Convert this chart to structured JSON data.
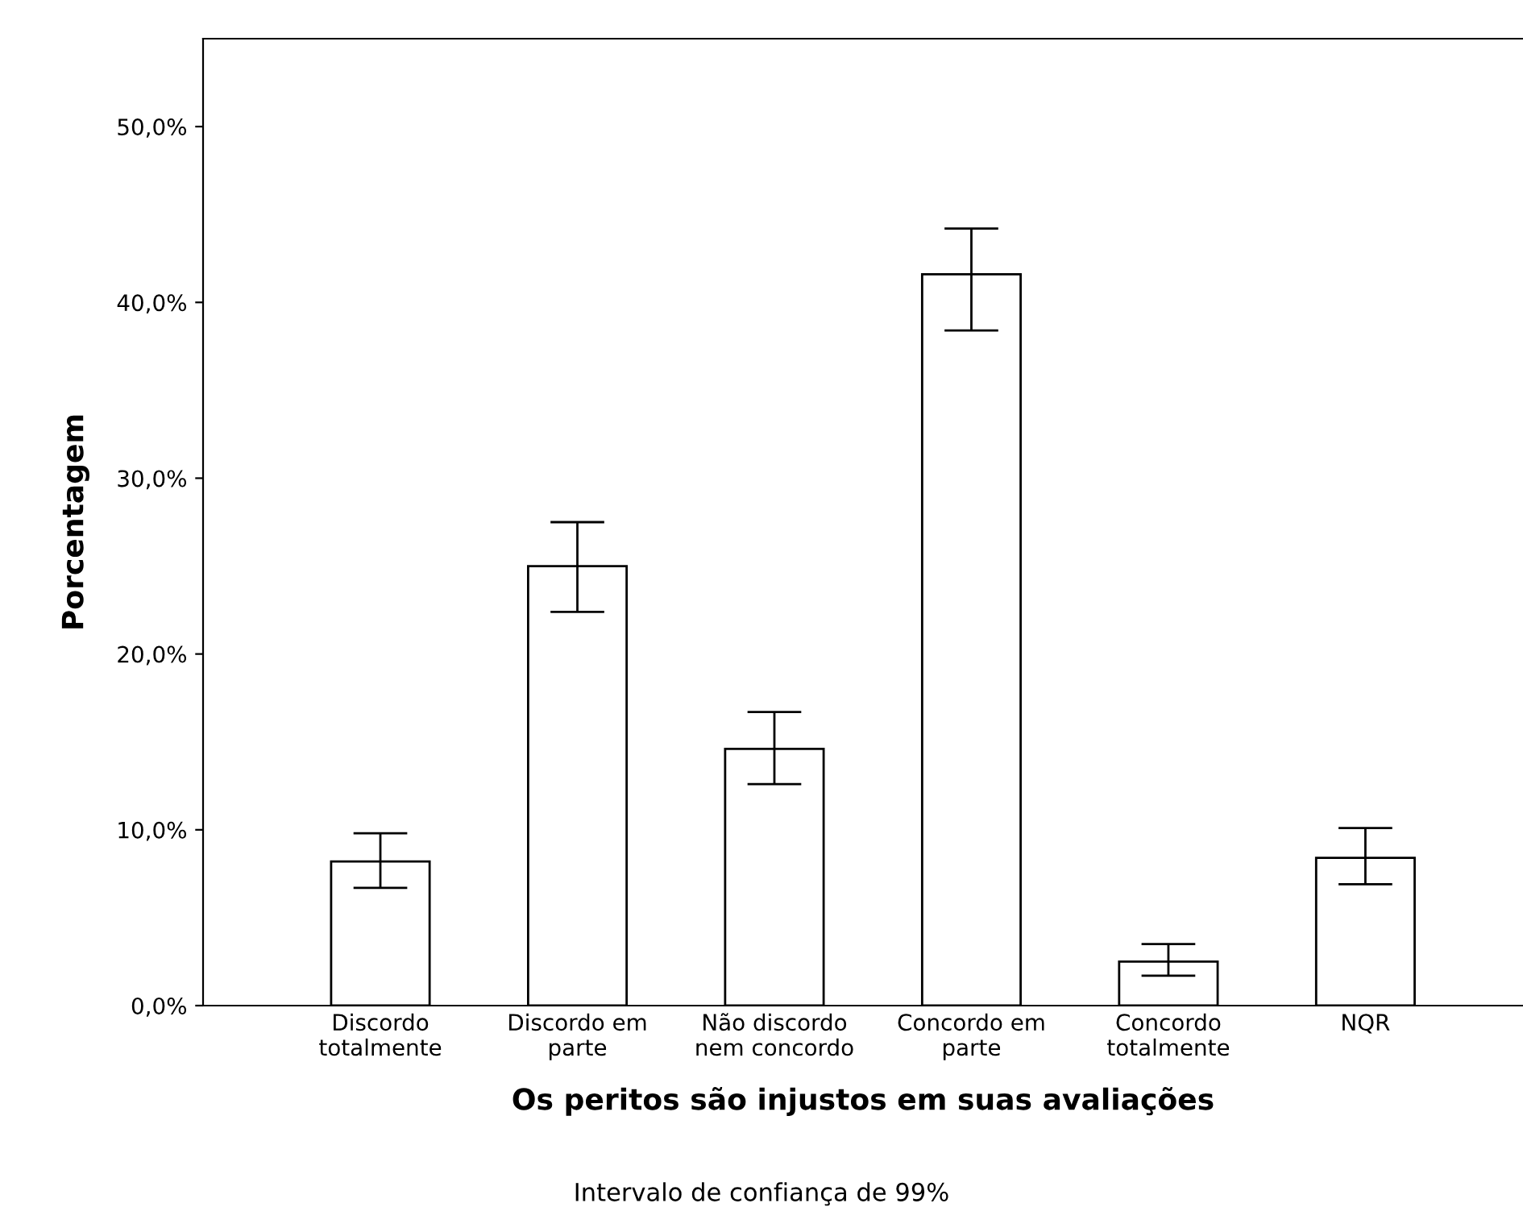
{
  "chart_data": {
    "type": "bar",
    "xlabel": "Os peritos são injustos em suas avaliações",
    "ylabel": "Porcentagem",
    "categories": [
      "Discordo\ntotalmente",
      "Discordo em\nparte",
      "Não discordo\nnem concordo",
      "Concordo em\nparte",
      "Concordo\ntotalmente",
      "NQR"
    ],
    "values": [
      8.2,
      25.0,
      14.6,
      41.6,
      2.5,
      8.4
    ],
    "errors": [
      [
        6.7,
        9.8
      ],
      [
        22.4,
        27.5
      ],
      [
        12.6,
        16.7
      ],
      [
        38.4,
        44.2
      ],
      [
        1.7,
        3.5
      ],
      [
        6.9,
        10.1
      ]
    ],
    "color": "#ffffff",
    "ylim": [
      0,
      55
    ],
    "yticks": [
      {
        "value": 0,
        "label": "0,0%"
      },
      {
        "value": 10,
        "label": "10,0%"
      },
      {
        "value": 20,
        "label": "20,0%"
      },
      {
        "value": 30,
        "label": "30,0%"
      },
      {
        "value": 40,
        "label": "40,0%"
      },
      {
        "value": 50,
        "label": "50,0%"
      }
    ],
    "grid": false,
    "legend": false,
    "annotations": [
      "Intervalo de confiança de 99%"
    ]
  }
}
